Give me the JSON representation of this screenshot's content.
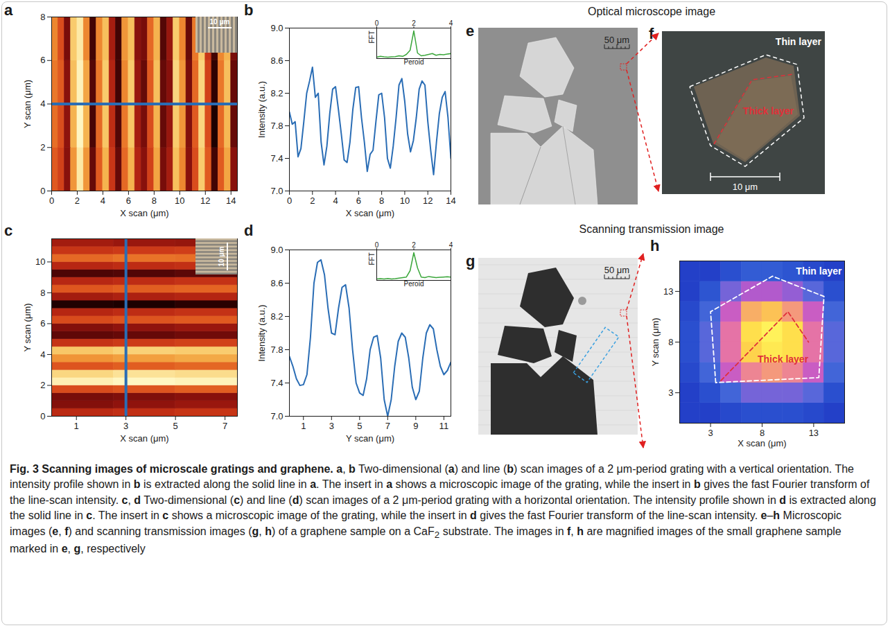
{
  "chart_data": [
    {
      "panel": "a",
      "type": "heatmap",
      "x": [
        0,
        0.5,
        1,
        1.5,
        2,
        2.5,
        3,
        3.5,
        4,
        4.5,
        5,
        5.5,
        6,
        6.5,
        7,
        7.5,
        8,
        8.5,
        9,
        9.5,
        10,
        10.5,
        11,
        11.5,
        12,
        12.5,
        13,
        13.5,
        14
      ],
      "y": [
        0,
        2,
        4,
        6
      ],
      "z": [
        [
          7.9,
          7.8,
          7.5,
          8.1,
          8.45,
          8.1,
          7.4,
          7.9,
          8.2,
          7.75,
          7.4,
          7.95,
          8.2,
          7.65,
          7.5,
          7.8,
          8.15,
          7.45,
          7.6,
          8.25,
          8.05,
          7.5,
          7.85,
          8.3,
          7.9,
          7.3,
          7.9,
          8.15,
          7.5
        ],
        [
          7.97,
          7.85,
          7.52,
          8.2,
          8.52,
          8.2,
          7.32,
          7.95,
          8.28,
          7.7,
          7.35,
          8.0,
          8.28,
          7.6,
          7.45,
          7.85,
          8.2,
          7.4,
          7.55,
          8.3,
          8.1,
          7.48,
          7.9,
          8.35,
          7.85,
          7.2,
          7.95,
          8.22,
          7.4
        ],
        [
          8.0,
          7.9,
          7.5,
          8.25,
          8.5,
          8.15,
          7.35,
          8.0,
          8.3,
          7.65,
          7.3,
          8.05,
          8.3,
          7.55,
          7.4,
          7.9,
          8.25,
          7.4,
          7.5,
          8.35,
          8.1,
          7.45,
          7.95,
          8.35,
          7.8,
          7.25,
          8.0,
          8.25,
          7.4
        ],
        [
          8.05,
          7.85,
          7.45,
          8.3,
          8.45,
          8.05,
          7.3,
          8.05,
          8.25,
          7.6,
          7.3,
          8.1,
          8.25,
          7.5,
          7.45,
          7.95,
          8.2,
          7.35,
          7.55,
          8.3,
          8.05,
          7.4,
          8.0,
          8.3,
          7.75,
          7.3,
          8.05,
          8.2,
          7.45
        ]
      ],
      "xlim": [
        0,
        14.5
      ],
      "ylim": [
        0,
        8
      ],
      "xticks": [
        0,
        2,
        4,
        6,
        8,
        10,
        12,
        14
      ],
      "yticks": [
        0,
        2,
        4,
        6,
        8
      ],
      "xlabel": "X scan (μm)",
      "ylabel": "Y scan (μm)",
      "profile_line": {
        "y": 4,
        "color": "#2a6db5"
      },
      "inset": {
        "type": "image",
        "scale_bar": "10 μm"
      }
    },
    {
      "panel": "b",
      "type": "line",
      "x": [
        0,
        0.25,
        0.5,
        0.75,
        1,
        1.25,
        1.5,
        1.75,
        2,
        2.25,
        2.5,
        2.75,
        3,
        3.25,
        3.5,
        3.75,
        4,
        4.25,
        4.5,
        4.75,
        5,
        5.25,
        5.5,
        5.75,
        6,
        6.25,
        6.5,
        6.75,
        7,
        7.25,
        7.5,
        7.75,
        8,
        8.25,
        8.5,
        8.75,
        9,
        9.25,
        9.5,
        9.75,
        10,
        10.25,
        10.5,
        10.75,
        11,
        11.25,
        11.5,
        11.75,
        12,
        12.25,
        12.5,
        12.75,
        13,
        13.25,
        13.5,
        13.75,
        14
      ],
      "values": [
        7.97,
        7.82,
        7.85,
        7.42,
        7.52,
        7.85,
        8.2,
        8.35,
        8.52,
        8.15,
        8.2,
        7.6,
        7.32,
        7.55,
        7.95,
        8.25,
        8.28,
        8.0,
        7.7,
        7.38,
        7.35,
        7.6,
        8.0,
        8.27,
        8.28,
        7.9,
        7.6,
        7.24,
        7.45,
        7.5,
        7.85,
        8.18,
        8.2,
        7.9,
        7.4,
        7.28,
        7.55,
        7.9,
        8.3,
        8.38,
        8.1,
        7.7,
        7.48,
        7.62,
        7.9,
        8.25,
        8.35,
        8.3,
        7.85,
        7.5,
        7.2,
        7.6,
        7.95,
        8.15,
        8.22,
        7.9,
        7.4
      ],
      "color": "#2a6db5",
      "xlim": [
        0,
        14
      ],
      "ylim": [
        7,
        9
      ],
      "xticks": [
        0,
        2,
        4,
        6,
        8,
        10,
        12,
        14
      ],
      "yticks": [
        {
          "value": 7,
          "label": "7.0"
        },
        7.4,
        7.8,
        8.2,
        8.6,
        {
          "value": 9,
          "label": "9.0"
        }
      ],
      "xlabel": "X scan (μm)",
      "ylabel": "Intensity (a.u.)",
      "inset": {
        "type": "line",
        "x": [
          0,
          0.2,
          0.4,
          0.6,
          0.8,
          1,
          1.2,
          1.4,
          1.6,
          1.8,
          2,
          2.2,
          2.4,
          2.6,
          2.8,
          3,
          3.2,
          3.4,
          3.6,
          3.8,
          4
        ],
        "values": [
          0.05,
          0.08,
          0.06,
          0.05,
          0.06,
          0.07,
          0.1,
          0.08,
          0.15,
          0.3,
          1.0,
          0.2,
          0.1,
          0.12,
          0.15,
          0.18,
          0.12,
          0.15,
          0.14,
          0.16,
          0.18
        ],
        "color": "#3aa63a",
        "xlim": [
          0,
          4
        ],
        "ylim": [
          0,
          1.1
        ],
        "xticks": [
          0,
          2,
          4
        ],
        "yticks": [],
        "tick_labels": "x",
        "xlabel": "Peroid",
        "ylabel": "FFT"
      }
    },
    {
      "panel": "c",
      "type": "heatmap",
      "x": [
        0,
        2.5,
        5
      ],
      "y": [
        0,
        0.5,
        1,
        1.5,
        2,
        2.5,
        3,
        3.5,
        4,
        4.5,
        5,
        5.5,
        6,
        6.5,
        7,
        7.5,
        8,
        8.5,
        9,
        9.5,
        10,
        10.5,
        11
      ],
      "z": [
        [
          7.68,
          7.72,
          7.76
        ],
        [
          7.4,
          7.45,
          7.5
        ],
        [
          7.35,
          7.38,
          7.42
        ],
        [
          7.9,
          7.95,
          8.0
        ],
        [
          8.8,
          8.85,
          8.82
        ],
        [
          8.62,
          8.7,
          8.66
        ],
        [
          7.95,
          8.0,
          8.04
        ],
        [
          8.25,
          8.3,
          8.35
        ],
        [
          8.52,
          8.58,
          8.55
        ],
        [
          7.75,
          7.8,
          7.84
        ],
        [
          7.25,
          7.28,
          7.32
        ],
        [
          7.4,
          7.45,
          7.5
        ],
        [
          7.9,
          7.95,
          7.98
        ],
        [
          7.65,
          7.7,
          7.74
        ],
        [
          7.02,
          7.0,
          7.05
        ],
        [
          7.55,
          7.6,
          7.64
        ],
        [
          7.96,
          8.0,
          8.03
        ],
        [
          7.66,
          7.7,
          7.74
        ],
        [
          7.18,
          7.2,
          7.24
        ],
        [
          7.66,
          7.7,
          7.73
        ],
        [
          8.05,
          8.1,
          8.08
        ],
        [
          7.76,
          7.8,
          7.82
        ],
        [
          7.55,
          7.5,
          7.48
        ]
      ],
      "xlim": [
        0,
        7.5
      ],
      "ylim": [
        0,
        11.5
      ],
      "xticks": [
        1,
        3,
        5,
        7
      ],
      "yticks": [
        0,
        2,
        4,
        6,
        8,
        10
      ],
      "xlabel": "X scan (μm)",
      "ylabel": "Y scan (μm)",
      "profile_line": {
        "x": 3,
        "color": "#2a6db5"
      },
      "inset": {
        "type": "image",
        "scale_bar": "10 μm"
      }
    },
    {
      "panel": "d",
      "type": "line",
      "x": [
        0,
        0.25,
        0.5,
        0.75,
        1,
        1.25,
        1.5,
        1.75,
        2,
        2.25,
        2.5,
        2.75,
        3,
        3.25,
        3.5,
        3.75,
        4,
        4.25,
        4.5,
        4.75,
        5,
        5.25,
        5.5,
        5.75,
        6,
        6.25,
        6.5,
        6.75,
        7,
        7.25,
        7.5,
        7.75,
        8,
        8.25,
        8.5,
        8.75,
        9,
        9.25,
        9.5,
        9.75,
        10,
        10.25,
        10.5,
        10.75,
        11,
        11.25,
        11.5
      ],
      "values": [
        7.72,
        7.6,
        7.45,
        7.37,
        7.38,
        7.5,
        7.95,
        8.6,
        8.85,
        8.88,
        8.7,
        8.3,
        8.0,
        7.98,
        8.3,
        8.55,
        8.58,
        8.3,
        7.8,
        7.4,
        7.28,
        7.25,
        7.45,
        7.8,
        7.95,
        7.97,
        7.7,
        7.2,
        7.0,
        7.2,
        7.6,
        7.9,
        8.0,
        7.95,
        7.7,
        7.35,
        7.2,
        7.3,
        7.7,
        8.0,
        8.1,
        8.05,
        7.8,
        7.6,
        7.5,
        7.55,
        7.65
      ],
      "color": "#2a6db5",
      "xlim": [
        0,
        11.5
      ],
      "ylim": [
        7,
        9
      ],
      "xticks": [
        1,
        3,
        5,
        7,
        9,
        11
      ],
      "yticks": [
        {
          "value": 7,
          "label": "7.0"
        },
        7.4,
        7.8,
        8.2,
        8.6,
        {
          "value": 9,
          "label": "9.0"
        }
      ],
      "xlabel": "Y scan (μm)",
      "ylabel": "Intensity (a.u.)",
      "inset": {
        "type": "line",
        "x": [
          0,
          0.2,
          0.4,
          0.6,
          0.8,
          1,
          1.2,
          1.4,
          1.6,
          1.8,
          2,
          2.2,
          2.4,
          2.6,
          2.8,
          3,
          3.2,
          3.4,
          3.6,
          3.8,
          4
        ],
        "values": [
          0.05,
          0.06,
          0.05,
          0.07,
          0.05,
          0.06,
          0.08,
          0.1,
          0.12,
          0.35,
          1.0,
          0.45,
          0.12,
          0.1,
          0.14,
          0.12,
          0.1,
          0.11,
          0.12,
          0.13,
          0.12
        ],
        "color": "#3aa63a",
        "xlim": [
          0,
          4
        ],
        "ylim": [
          0,
          1.1
        ],
        "xticks": [
          0,
          2,
          4
        ],
        "yticks": [],
        "tick_labels": "x",
        "xlabel": "Peroid",
        "ylabel": "FFT"
      }
    },
    {
      "panel": "h",
      "type": "heatmap",
      "x": [
        0,
        2,
        4,
        6,
        8,
        10,
        12,
        14
      ],
      "y": [
        0,
        2,
        4,
        6,
        8,
        10,
        12,
        14
      ],
      "z": [
        [
          0.05,
          0.05,
          0.08,
          0.1,
          0.1,
          0.1,
          0.08,
          0.05
        ],
        [
          0.05,
          0.1,
          0.2,
          0.3,
          0.3,
          0.3,
          0.25,
          0.1
        ],
        [
          0.08,
          0.2,
          0.45,
          0.6,
          0.65,
          0.6,
          0.45,
          0.2
        ],
        [
          0.1,
          0.25,
          0.55,
          0.8,
          0.9,
          0.85,
          0.55,
          0.25
        ],
        [
          0.1,
          0.25,
          0.55,
          0.85,
          0.95,
          0.85,
          0.55,
          0.25
        ],
        [
          0.08,
          0.2,
          0.45,
          0.7,
          0.75,
          0.65,
          0.45,
          0.2
        ],
        [
          0.05,
          0.12,
          0.3,
          0.4,
          0.4,
          0.35,
          0.25,
          0.1
        ],
        [
          0.05,
          0.05,
          0.1,
          0.15,
          0.15,
          0.12,
          0.08,
          0.05
        ]
      ],
      "xlim": [
        0,
        16
      ],
      "ylim": [
        0,
        16
      ],
      "xticks": [
        3,
        8,
        13
      ],
      "yticks": [
        3,
        8,
        13
      ],
      "xlabel": "X scan (μm)",
      "ylabel": "Y scan (μm)",
      "outlines": [
        {
          "color": "#ffffff",
          "points": [
            [
              3.5,
              4
            ],
            [
              3,
              11
            ],
            [
              9,
              14.5
            ],
            [
              14,
              12.5
            ],
            [
              13.5,
              4.5
            ],
            [
              3.5,
              4
            ]
          ]
        },
        {
          "color": "#e0303a",
          "points": [
            [
              4,
              4.2
            ],
            [
              10.5,
              11
            ],
            [
              12.5,
              8
            ]
          ]
        }
      ],
      "annotations": [
        {
          "text": "Thin layer",
          "color": "#ffffff"
        },
        {
          "text": "Thick layer",
          "color": "#e0303a"
        }
      ]
    }
  ],
  "images": {
    "headings": [
      "Optical microscope image",
      "Scanning transmission image"
    ],
    "e": {
      "panel": "e",
      "scale_bar": "50 μm"
    },
    "f": {
      "panel": "f",
      "scale_bar": "10 μm",
      "labels": [
        "Thin layer",
        "Thick layer"
      ]
    },
    "g": {
      "panel": "g",
      "scale_bar": "50 μm"
    }
  },
  "caption": [
    [
      "b",
      "Fig. 3 Scanning images of microscale gratings and graphene."
    ],
    [
      "b",
      " a"
    ],
    [
      "n",
      ", "
    ],
    [
      "b",
      "b"
    ],
    [
      "n",
      " Two-dimensional ("
    ],
    [
      "b",
      "a"
    ],
    [
      "n",
      ") and line ("
    ],
    [
      "b",
      "b"
    ],
    [
      "n",
      ") scan images of a 2 μm-period grating with a vertical orientation. The intensity profile shown in "
    ],
    [
      "b",
      "b"
    ],
    [
      "n",
      " is extracted along the solid line in "
    ],
    [
      "b",
      "a"
    ],
    [
      "n",
      ". The insert in "
    ],
    [
      "b",
      "a"
    ],
    [
      "n",
      " shows a microscopic image of the grating, while the insert in "
    ],
    [
      "b",
      "b"
    ],
    [
      "n",
      " gives the fast Fourier transform of the line-scan intensity. "
    ],
    [
      "b",
      "c"
    ],
    [
      "n",
      ", "
    ],
    [
      "b",
      "d"
    ],
    [
      "n",
      " Two-dimensional ("
    ],
    [
      "b",
      "c"
    ],
    [
      "n",
      ") and line ("
    ],
    [
      "b",
      "d"
    ],
    [
      "n",
      ") scan images of a 2 μm-period grating with a horizontal orientation. The intensity profile shown in "
    ],
    [
      "b",
      "d"
    ],
    [
      "n",
      " is extracted along the solid line in "
    ],
    [
      "b",
      "c"
    ],
    [
      "n",
      ". The insert in "
    ],
    [
      "b",
      "c"
    ],
    [
      "n",
      " shows a microscopic image of the grating, while the insert in "
    ],
    [
      "b",
      "d"
    ],
    [
      "n",
      " gives the fast Fourier transform of the line-scan intensity. "
    ],
    [
      "b",
      "e"
    ],
    [
      "n",
      "–"
    ],
    [
      "b",
      "h"
    ],
    [
      "n",
      " Microscopic images ("
    ],
    [
      "b",
      "e"
    ],
    [
      "n",
      ", "
    ],
    [
      "b",
      "f"
    ],
    [
      "n",
      ") and scanning transmission images ("
    ],
    [
      "b",
      "g"
    ],
    [
      "n",
      ", "
    ],
    [
      "b",
      "h"
    ],
    [
      "n",
      ") of a graphene sample on a CaF"
    ],
    [
      "sub",
      "2"
    ],
    [
      "n",
      " substrate. The images in "
    ],
    [
      "b",
      "f"
    ],
    [
      "n",
      ", "
    ],
    [
      "b",
      "h"
    ],
    [
      "n",
      " are magnified images of the small graphene sample marked in "
    ],
    [
      "b",
      "e"
    ],
    [
      "n",
      ", "
    ],
    [
      "b",
      "g"
    ],
    [
      "n",
      ", respectively"
    ]
  ]
}
